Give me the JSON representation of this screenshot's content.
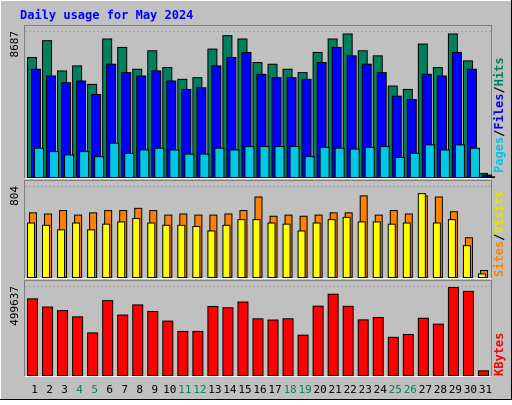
{
  "title": "Daily usage for May 2024",
  "colors": {
    "background": "#c0c0c0",
    "title": "#0000ff",
    "hits": "#00805c",
    "files": "#0000ff",
    "pages": "#00c8e4",
    "visits": "#ffff00",
    "sites": "#ff8000",
    "kbytes": "#ff0000",
    "slash": "#000000",
    "weekend_day": "#00805c",
    "weekday_day": "#000000"
  },
  "legends": {
    "top": [
      {
        "text": "Pages",
        "color": "#00c8e4"
      },
      {
        "text": "/",
        "color": "#000000"
      },
      {
        "text": "Files",
        "color": "#0000ff"
      },
      {
        "text": "/",
        "color": "#000000"
      },
      {
        "text": "Hits",
        "color": "#00805c"
      }
    ],
    "middle": [
      {
        "text": "Sites",
        "color": "#ff8000"
      },
      {
        "text": "/",
        "color": "#000000"
      },
      {
        "text": "Visits",
        "color": "#e6e600"
      }
    ],
    "bottom": [
      {
        "text": "KBytes",
        "color": "#ff0000"
      }
    ]
  },
  "chart_data": {
    "type": "bar",
    "title": "Daily usage for May 2024",
    "categories": [
      "1",
      "2",
      "3",
      "4",
      "5",
      "6",
      "7",
      "8",
      "9",
      "10",
      "11",
      "12",
      "13",
      "14",
      "15",
      "16",
      "17",
      "18",
      "19",
      "20",
      "21",
      "22",
      "23",
      "24",
      "25",
      "26",
      "27",
      "28",
      "29",
      "30",
      "31"
    ],
    "weekend_days": [
      "4",
      "5",
      "11",
      "12",
      "18",
      "19",
      "25",
      "26"
    ],
    "panels": [
      {
        "name": "hits-files-pages",
        "ymax_label": "8687",
        "ymax": 8687,
        "series": [
          {
            "name": "Hits",
            "values": [
              7200,
              8200,
              6400,
              6700,
              5600,
              8300,
              7800,
              6500,
              7600,
              6600,
              5900,
              6000,
              7700,
              8500,
              8300,
              6900,
              6800,
              6500,
              6300,
              7500,
              8300,
              8600,
              7600,
              7300,
              5500,
              5300,
              8000,
              6600,
              8600,
              7000,
              300
            ]
          },
          {
            "name": "Files",
            "values": [
              6500,
              6100,
              5700,
              5800,
              5000,
              6800,
              6300,
              6100,
              6400,
              5800,
              5300,
              5400,
              6700,
              7200,
              7500,
              6200,
              6000,
              6000,
              5900,
              6900,
              7800,
              7300,
              6800,
              6300,
              4900,
              4700,
              6200,
              6100,
              7500,
              6500,
              200
            ]
          },
          {
            "name": "Pages",
            "values": [
              1800,
              1600,
              1400,
              1600,
              1300,
              2100,
              1500,
              1700,
              1800,
              1700,
              1450,
              1450,
              1800,
              1700,
              1900,
              1900,
              1900,
              1900,
              1300,
              1850,
              1800,
              1750,
              1850,
              1900,
              1250,
              1500,
              2000,
              1700,
              2000,
              1800,
              100
            ]
          }
        ]
      },
      {
        "name": "sites-visits",
        "ymax_label": "804",
        "ymax": 804,
        "series": [
          {
            "name": "Sites",
            "values": [
              580,
              570,
              600,
              560,
              580,
              600,
              600,
              620,
              600,
              560,
              570,
              560,
              560,
              570,
              600,
              720,
              550,
              560,
              550,
              560,
              580,
              580,
              730,
              560,
              600,
              570,
              730,
              720,
              590,
              360,
              70
            ]
          },
          {
            "name": "Visits",
            "values": [
              490,
              470,
              430,
              490,
              430,
              480,
              500,
              530,
              490,
              470,
              470,
              460,
              420,
              470,
              520,
              520,
              490,
              480,
              420,
              490,
              520,
              540,
              500,
              500,
              480,
              490,
              750,
              490,
              520,
              290,
              40
            ]
          }
        ]
      },
      {
        "name": "kbytes",
        "ymax_label": "499637",
        "ymax": 499637,
        "series": [
          {
            "name": "KBytes",
            "values": [
              436000,
              390000,
              370000,
              335000,
              245000,
              426000,
              345000,
              402000,
              365000,
              311000,
              253000,
              253000,
              393000,
              386000,
              418000,
              324000,
              317000,
              324000,
              232000,
              395000,
              462000,
              394000,
              318000,
              331000,
              220000,
              236000,
              327000,
              294000,
              499637,
              478000,
              32000
            ]
          }
        ]
      }
    ]
  }
}
